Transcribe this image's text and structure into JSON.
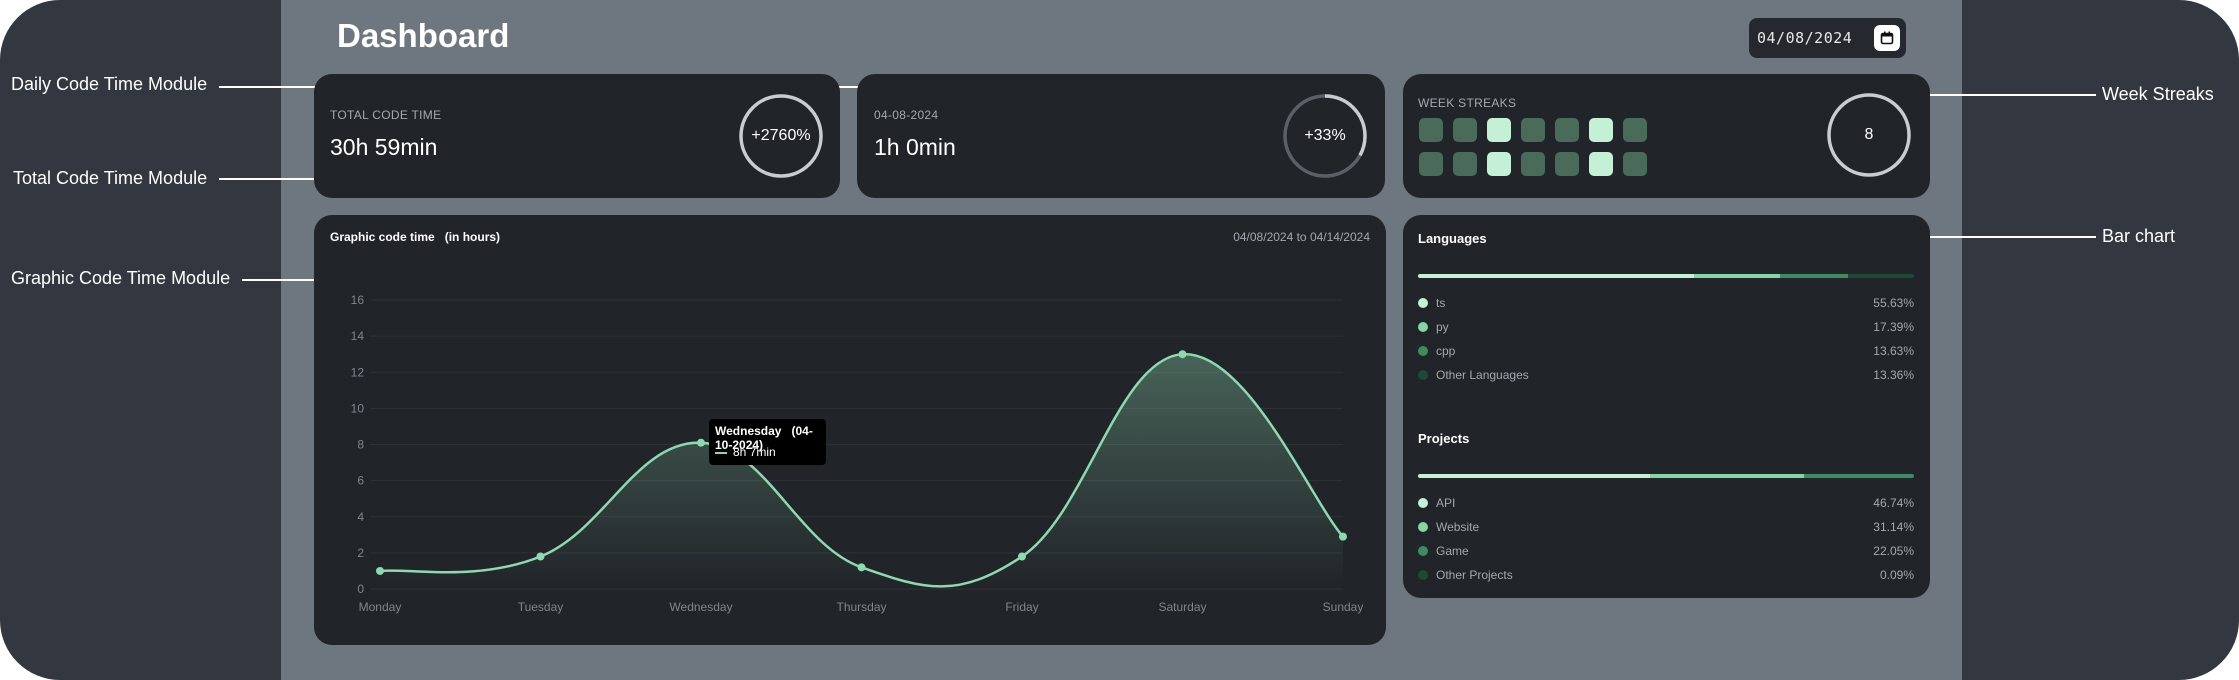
{
  "header": {
    "title": "Dashboard",
    "date": "04/08/2024"
  },
  "annotations": {
    "daily": "Daily Code Time Module",
    "total": "Total Code Time Module",
    "graphic": "Graphic Code Time Module",
    "week": "Week Streaks",
    "bar": "Bar chart"
  },
  "total_card": {
    "label": "TOTAL CODE TIME",
    "value": "30h 59min",
    "change": "+2760%"
  },
  "daily_card": {
    "label": "04-08-2024",
    "value": "1h 0min",
    "change": "+33%",
    "progress": 0.33
  },
  "streak_card": {
    "label": "WEEK STREAKS",
    "count": "8",
    "rows": [
      [
        0.35,
        0.35,
        0.9,
        0.35,
        0.35,
        0.9,
        0.35
      ],
      [
        0.35,
        0.35,
        0.9,
        0.35,
        0.35,
        0.9,
        0.35
      ]
    ]
  },
  "graph_card": {
    "title": "Graphic code time",
    "unit": "(in hours)",
    "range": "04/08/2024 to 04/14/2024"
  },
  "tooltip": {
    "day": "Wednesday",
    "date": "(04-10-2024)",
    "value": "8h 7min"
  },
  "chart_data": {
    "type": "area",
    "x": [
      "Monday",
      "Tuesday",
      "Wednesday",
      "Thursday",
      "Friday",
      "Saturday",
      "Sunday"
    ],
    "series": [
      {
        "values": [
          1.0,
          1.8,
          8.1,
          1.2,
          1.8,
          13.0,
          2.9
        ]
      }
    ],
    "yticks": [
      "0",
      "2",
      "4",
      "6",
      "8",
      "10",
      "12",
      "14",
      "16"
    ],
    "ylim": [
      0,
      16
    ],
    "grid": true
  },
  "languages": {
    "title": "Languages",
    "items": [
      {
        "name": "ts",
        "pct": "55.63%",
        "value": 55.63,
        "color": "#c4f0d6"
      },
      {
        "name": "py",
        "pct": "17.39%",
        "value": 17.39,
        "color": "#86d4a8"
      },
      {
        "name": "cpp",
        "pct": "13.63%",
        "value": 13.63,
        "color": "#3e8a62"
      },
      {
        "name": "Other Languages",
        "pct": "13.36%",
        "value": 13.36,
        "color": "#1e4a35"
      }
    ]
  },
  "projects": {
    "title": "Projects",
    "items": [
      {
        "name": "API",
        "pct": "46.74%",
        "value": 46.74,
        "color": "#c4f0d6"
      },
      {
        "name": "Website",
        "pct": "31.14%",
        "value": 31.14,
        "color": "#86d4a8"
      },
      {
        "name": "Game",
        "pct": "22.05%",
        "value": 22.05,
        "color": "#3e8a62"
      },
      {
        "name": "Other Projects",
        "pct": "0.09%",
        "value": 0.09,
        "color": "#1e4a35"
      }
    ]
  },
  "colors": {
    "accent": "#8fd9b0",
    "card": "#212429",
    "stage": "#6e7680"
  }
}
